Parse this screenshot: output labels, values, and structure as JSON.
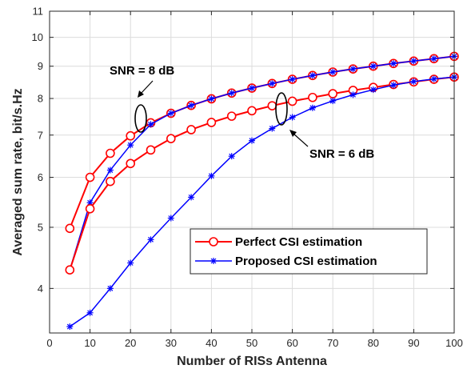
{
  "chart_data": {
    "type": "line",
    "xlabel": "Number of RISs Antenna",
    "ylabel": "Averaged sum rate, bit/s.Hz",
    "xlim": [
      0,
      100
    ],
    "ylim": [
      3.4,
      11
    ],
    "y_scale": "log",
    "grid": true,
    "legend_position": "lower-right",
    "x_ticks": [
      "0",
      "10",
      "20",
      "30",
      "40",
      "50",
      "60",
      "70",
      "80",
      "90",
      "100"
    ],
    "y_ticks": [
      "4",
      "5",
      "6",
      "7",
      "8",
      "9",
      "10",
      "11"
    ],
    "x": [
      5,
      10,
      15,
      20,
      25,
      30,
      35,
      40,
      45,
      50,
      55,
      60,
      65,
      70,
      75,
      80,
      85,
      90,
      95,
      100
    ],
    "series": [
      {
        "name": "Perfect CSI estimation",
        "snr": "8 dB",
        "color": "#ff0000",
        "marker": "circle",
        "values": [
          4.98,
          6.0,
          6.55,
          6.98,
          7.32,
          7.58,
          7.8,
          7.99,
          8.16,
          8.31,
          8.45,
          8.58,
          8.7,
          8.81,
          8.91,
          9.0,
          9.09,
          9.17,
          9.25,
          9.33
        ]
      },
      {
        "name": "Proposed CSI estimation",
        "snr": "8 dB",
        "color": "#0000ff",
        "marker": "star",
        "values": [
          4.28,
          5.47,
          6.16,
          6.75,
          7.28,
          7.58,
          7.8,
          7.99,
          8.16,
          8.31,
          8.45,
          8.58,
          8.7,
          8.81,
          8.91,
          9.0,
          9.09,
          9.17,
          9.25,
          9.33
        ]
      },
      {
        "name": "Perfect CSI estimation",
        "snr": "6 dB",
        "color": "#ff0000",
        "marker": "circle",
        "values": [
          4.28,
          5.35,
          5.91,
          6.31,
          6.63,
          6.91,
          7.14,
          7.33,
          7.5,
          7.65,
          7.79,
          7.92,
          8.03,
          8.14,
          8.24,
          8.33,
          8.42,
          8.5,
          8.58,
          8.65
        ]
      },
      {
        "name": "Proposed CSI estimation",
        "snr": "6 dB",
        "color": "#0000ff",
        "marker": "star",
        "values": [
          3.48,
          3.66,
          4.0,
          4.39,
          4.78,
          5.17,
          5.58,
          6.03,
          6.48,
          6.86,
          7.17,
          7.47,
          7.73,
          7.93,
          8.11,
          8.26,
          8.4,
          8.51,
          8.59,
          8.65
        ]
      }
    ],
    "legend": [
      "Perfect CSI estimation",
      "Proposed CSI estimation"
    ],
    "annotations": [
      "SNR = 8 dB",
      "SNR = 6 dB"
    ]
  }
}
